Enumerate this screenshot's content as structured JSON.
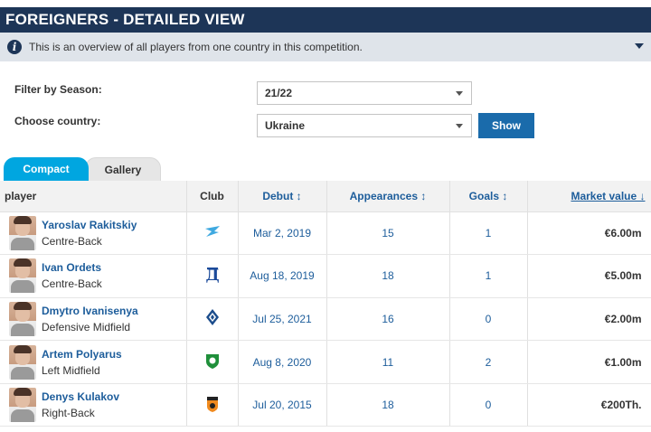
{
  "header": {
    "title": "FOREIGNERS - DETAILED VIEW"
  },
  "info": {
    "text": "This is an overview of all players from one country in this competition."
  },
  "filters": {
    "season_label": "Filter by Season:",
    "season_value": "21/22",
    "country_label": "Choose country:",
    "country_value": "Ukraine",
    "show_label": "Show"
  },
  "tabs": {
    "compact": "Compact",
    "gallery": "Gallery"
  },
  "table": {
    "headers": {
      "player": "player",
      "club": "Club",
      "debut": "Debut ↕",
      "appearances": "Appearances ↕",
      "goals": "Goals ↕",
      "market_value": "Market value ↓"
    },
    "rows": [
      {
        "name": "Yaroslav Rakitskiy",
        "position": "Centre-Back",
        "club_icon": "zenit-crest-icon",
        "debut": "Mar 2, 2019",
        "appearances": "15",
        "goals": "1",
        "market_value": "€6.00m"
      },
      {
        "name": "Ivan Ordets",
        "position": "Centre-Back",
        "club_icon": "dynamo-moscow-crest-icon",
        "debut": "Aug 18, 2019",
        "appearances": "18",
        "goals": "1",
        "market_value": "€5.00m"
      },
      {
        "name": "Dmytro Ivanisenya",
        "position": "Defensive Midfield",
        "club_icon": "krylya-sovetov-crest-icon",
        "debut": "Jul 25, 2021",
        "appearances": "16",
        "goals": "0",
        "market_value": "€2.00m"
      },
      {
        "name": "Artem Polyarus",
        "position": "Left Midfield",
        "club_icon": "akhmat-crest-icon",
        "debut": "Aug 8, 2020",
        "appearances": "11",
        "goals": "2",
        "market_value": "€1.00m"
      },
      {
        "name": "Denys Kulakov",
        "position": "Right-Back",
        "club_icon": "ural-crest-icon",
        "debut": "Jul 20, 2015",
        "appearances": "18",
        "goals": "0",
        "market_value": "€200Th."
      }
    ]
  },
  "colors": {
    "header_bg": "#1d3557",
    "tab_active": "#00a6e0",
    "link": "#1d5d9b",
    "button": "#1a6bab"
  }
}
